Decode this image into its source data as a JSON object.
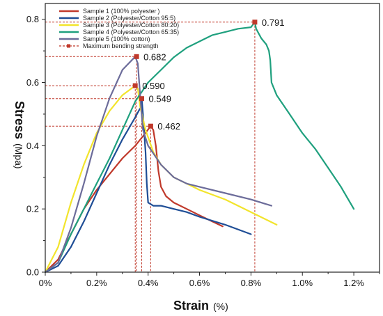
{
  "chart_data": {
    "type": "line",
    "xlabel": "Strain",
    "xlabel_unit": "(%)",
    "ylabel": "Stress",
    "ylabel_unit": "(Mpa)",
    "xlim": [
      0,
      1.3
    ],
    "ylim": [
      0,
      0.85
    ],
    "x_ticks": [
      0,
      0.2,
      0.4,
      0.6,
      0.8,
      1.0,
      1.2
    ],
    "x_tick_labels": [
      "0%",
      "0.2%",
      "0.4%",
      "0.6%",
      "0.8%",
      "1.0%",
      "1.2%"
    ],
    "y_ticks": [
      0,
      0.2,
      0.4,
      0.6,
      0.8
    ],
    "y_tick_labels": [
      "0.0",
      "0.2",
      "0.4",
      "0.6",
      "0.8"
    ],
    "grid": false,
    "legend_position": "top-left",
    "series": [
      {
        "name": "Sample 1 (100% polyester )",
        "color": "#c0392b",
        "points": [
          [
            0,
            0
          ],
          [
            0.05,
            0.04
          ],
          [
            0.1,
            0.12
          ],
          [
            0.15,
            0.2
          ],
          [
            0.2,
            0.26
          ],
          [
            0.25,
            0.31
          ],
          [
            0.3,
            0.36
          ],
          [
            0.35,
            0.4
          ],
          [
            0.38,
            0.43
          ],
          [
            0.41,
            0.462
          ],
          [
            0.42,
            0.45
          ],
          [
            0.43,
            0.4
          ],
          [
            0.44,
            0.32
          ],
          [
            0.45,
            0.27
          ],
          [
            0.47,
            0.24
          ],
          [
            0.5,
            0.22
          ],
          [
            0.55,
            0.2
          ],
          [
            0.6,
            0.18
          ],
          [
            0.65,
            0.16
          ],
          [
            0.69,
            0.145
          ]
        ]
      },
      {
        "name": "Sample 2 (Polyester/Cotton 95:5)",
        "color": "#1f4e96",
        "points": [
          [
            0,
            0
          ],
          [
            0.05,
            0.02
          ],
          [
            0.1,
            0.08
          ],
          [
            0.15,
            0.16
          ],
          [
            0.2,
            0.25
          ],
          [
            0.25,
            0.34
          ],
          [
            0.3,
            0.42
          ],
          [
            0.35,
            0.49
          ],
          [
            0.37,
            0.52
          ],
          [
            0.375,
            0.549
          ],
          [
            0.38,
            0.5
          ],
          [
            0.39,
            0.38
          ],
          [
            0.395,
            0.28
          ],
          [
            0.4,
            0.22
          ],
          [
            0.42,
            0.21
          ],
          [
            0.45,
            0.21
          ],
          [
            0.5,
            0.2
          ],
          [
            0.55,
            0.19
          ],
          [
            0.6,
            0.175
          ],
          [
            0.7,
            0.15
          ],
          [
            0.8,
            0.12
          ]
        ]
      },
      {
        "name": "Sample 3 (Polyester/Cotton 80:20)",
        "color": "#f2e42c",
        "points": [
          [
            0,
            0
          ],
          [
            0.05,
            0.08
          ],
          [
            0.1,
            0.22
          ],
          [
            0.15,
            0.34
          ],
          [
            0.2,
            0.44
          ],
          [
            0.25,
            0.51
          ],
          [
            0.3,
            0.56
          ],
          [
            0.35,
            0.59
          ],
          [
            0.36,
            0.58
          ],
          [
            0.37,
            0.52
          ],
          [
            0.39,
            0.45
          ],
          [
            0.42,
            0.38
          ],
          [
            0.45,
            0.34
          ],
          [
            0.5,
            0.3
          ],
          [
            0.6,
            0.26
          ],
          [
            0.7,
            0.23
          ],
          [
            0.8,
            0.19
          ],
          [
            0.9,
            0.15
          ]
        ]
      },
      {
        "name": "Sample 4 (Polyester/Cotton 65:35)",
        "color": "#1fa07e",
        "points": [
          [
            0,
            0
          ],
          [
            0.05,
            0.03
          ],
          [
            0.1,
            0.12
          ],
          [
            0.15,
            0.2
          ],
          [
            0.2,
            0.28
          ],
          [
            0.25,
            0.36
          ],
          [
            0.3,
            0.45
          ],
          [
            0.35,
            0.54
          ],
          [
            0.4,
            0.6
          ],
          [
            0.45,
            0.64
          ],
          [
            0.5,
            0.68
          ],
          [
            0.55,
            0.71
          ],
          [
            0.6,
            0.73
          ],
          [
            0.65,
            0.75
          ],
          [
            0.7,
            0.76
          ],
          [
            0.75,
            0.77
          ],
          [
            0.8,
            0.775
          ],
          [
            0.815,
            0.791
          ],
          [
            0.82,
            0.77
          ],
          [
            0.84,
            0.74
          ],
          [
            0.86,
            0.72
          ],
          [
            0.87,
            0.7
          ],
          [
            0.875,
            0.67
          ],
          [
            0.88,
            0.6
          ],
          [
            0.9,
            0.56
          ],
          [
            0.95,
            0.5
          ],
          [
            1.0,
            0.44
          ],
          [
            1.05,
            0.39
          ],
          [
            1.1,
            0.33
          ],
          [
            1.15,
            0.27
          ],
          [
            1.2,
            0.2
          ]
        ]
      },
      {
        "name": "Sample 5 (100% cotton)",
        "color": "#6c6c9a",
        "points": [
          [
            0,
            0
          ],
          [
            0.05,
            0.03
          ],
          [
            0.1,
            0.14
          ],
          [
            0.15,
            0.28
          ],
          [
            0.2,
            0.43
          ],
          [
            0.25,
            0.55
          ],
          [
            0.3,
            0.64
          ],
          [
            0.35,
            0.682
          ],
          [
            0.36,
            0.66
          ],
          [
            0.37,
            0.55
          ],
          [
            0.38,
            0.45
          ],
          [
            0.4,
            0.4
          ],
          [
            0.45,
            0.34
          ],
          [
            0.5,
            0.3
          ],
          [
            0.55,
            0.28
          ],
          [
            0.6,
            0.27
          ],
          [
            0.7,
            0.25
          ],
          [
            0.8,
            0.23
          ],
          [
            0.88,
            0.21
          ]
        ]
      }
    ],
    "max_points": {
      "legend_name": "Maximum bending strength",
      "color": "#c0392b",
      "points": [
        {
          "x": 0.41,
          "y": 0.462,
          "label": "0.462"
        },
        {
          "x": 0.375,
          "y": 0.549,
          "label": "0.549"
        },
        {
          "x": 0.35,
          "y": 0.59,
          "label": "0.590"
        },
        {
          "x": 0.815,
          "y": 0.791,
          "label": "0.791"
        },
        {
          "x": 0.355,
          "y": 0.682,
          "label": "0.682"
        }
      ]
    }
  }
}
